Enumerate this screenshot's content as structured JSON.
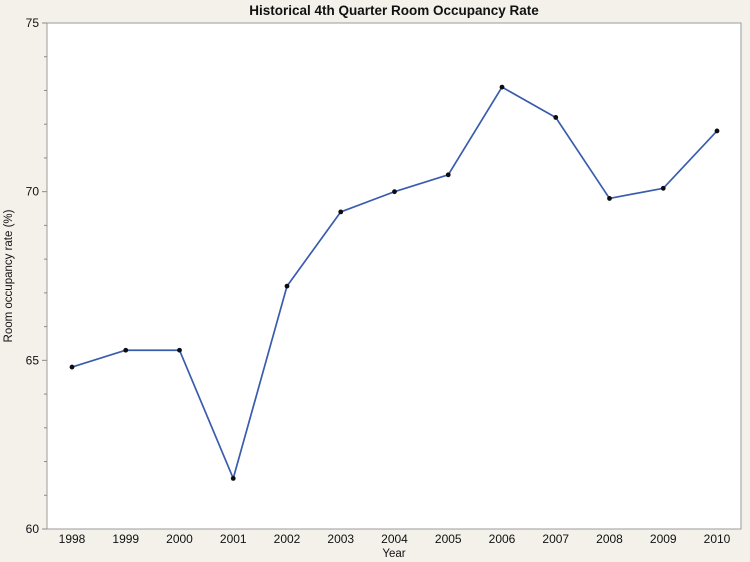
{
  "page": {
    "background_color": "#F3F1EA",
    "plot_background_color": "#FFFFFF",
    "frame_color": "#9B9B9B",
    "tick_color": "#8A8A8A"
  },
  "chart_data": {
    "type": "line",
    "title": "Historical 4th Quarter Room Occupancy Rate",
    "xlabel": "Year",
    "ylabel": "Room occupancy rate (%)",
    "x": [
      1998,
      1999,
      2000,
      2001,
      2002,
      2003,
      2004,
      2005,
      2006,
      2007,
      2008,
      2009,
      2010
    ],
    "values": [
      64.8,
      65.3,
      65.3,
      61.5,
      67.2,
      69.4,
      70.0,
      70.5,
      73.1,
      72.2,
      69.8,
      70.1,
      71.8
    ],
    "series_name": "Room occupancy rate (%)",
    "xlim": [
      1998,
      2010
    ],
    "ylim": [
      60,
      75
    ],
    "y_major_ticks": [
      60,
      65,
      70,
      75
    ],
    "y_minor_tick_step": 1,
    "grid": false,
    "legend_position": "none",
    "line_color": "#3A5CAD",
    "marker_color": "#0D0D0D",
    "marker_shape": "circle"
  }
}
